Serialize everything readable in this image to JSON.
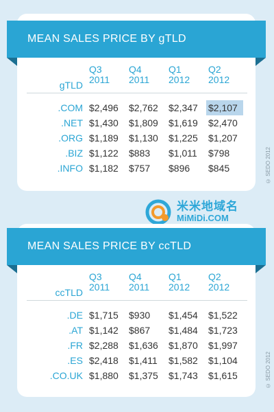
{
  "gtld_card": {
    "title": "MEAN SALES PRICE BY gTLD",
    "label_header": "gTLD",
    "quarters": [
      {
        "q": "Q3",
        "year": "2011"
      },
      {
        "q": "Q4",
        "year": "2011"
      },
      {
        "q": "Q1",
        "year": "2012"
      },
      {
        "q": "Q2",
        "year": "2012"
      }
    ],
    "rows": [
      {
        "label": ".COM",
        "values": [
          "$2,496",
          "$2,762",
          "$2,347",
          "$2,107"
        ]
      },
      {
        "label": ".NET",
        "values": [
          "$1,430",
          "$1,809",
          "$1,619",
          "$2,470"
        ]
      },
      {
        "label": ".ORG",
        "values": [
          "$1,189",
          "$1,130",
          "$1,225",
          "$1,207"
        ]
      },
      {
        "label": ".BIZ",
        "values": [
          "$1,122",
          "$883",
          "$1,011",
          "$798"
        ]
      },
      {
        "label": ".INFO",
        "values": [
          "$1,182",
          "$757",
          "$896",
          "$845"
        ]
      }
    ],
    "copyright": "© SEDO 2012"
  },
  "cctld_card": {
    "title": "MEAN SALES PRICE BY ccTLD",
    "label_header": "ccTLD",
    "quarters": [
      {
        "q": "Q3",
        "year": "2011"
      },
      {
        "q": "Q4",
        "year": "2011"
      },
      {
        "q": "Q1",
        "year": "2012"
      },
      {
        "q": "Q2",
        "year": "2012"
      }
    ],
    "rows": [
      {
        "label": ".DE",
        "values": [
          "$1,715",
          "$930",
          "$1,454",
          "$1,522"
        ]
      },
      {
        "label": ".AT",
        "values": [
          "$1,142",
          "$867",
          "$1,484",
          "$1,723"
        ]
      },
      {
        "label": ".FR",
        "values": [
          "$2,288",
          "$1,636",
          "$1,870",
          "$1,997"
        ]
      },
      {
        "label": ".ES",
        "values": [
          "$2,418",
          "$1,411",
          "$1,582",
          "$1,104"
        ]
      },
      {
        "label": ".CO.UK",
        "values": [
          "$1,880",
          "$1,375",
          "$1,743",
          "$1,615"
        ]
      }
    ],
    "copyright": "© SEDO 2012"
  },
  "watermark": {
    "cn": "米米地域名",
    "en": "MiMiDi.COM"
  },
  "colors": {
    "accent": "#2aa5d4",
    "ribbon_fold": "#1b6f92",
    "background": "#dcecf6",
    "highlight": "#b9d6ec"
  }
}
